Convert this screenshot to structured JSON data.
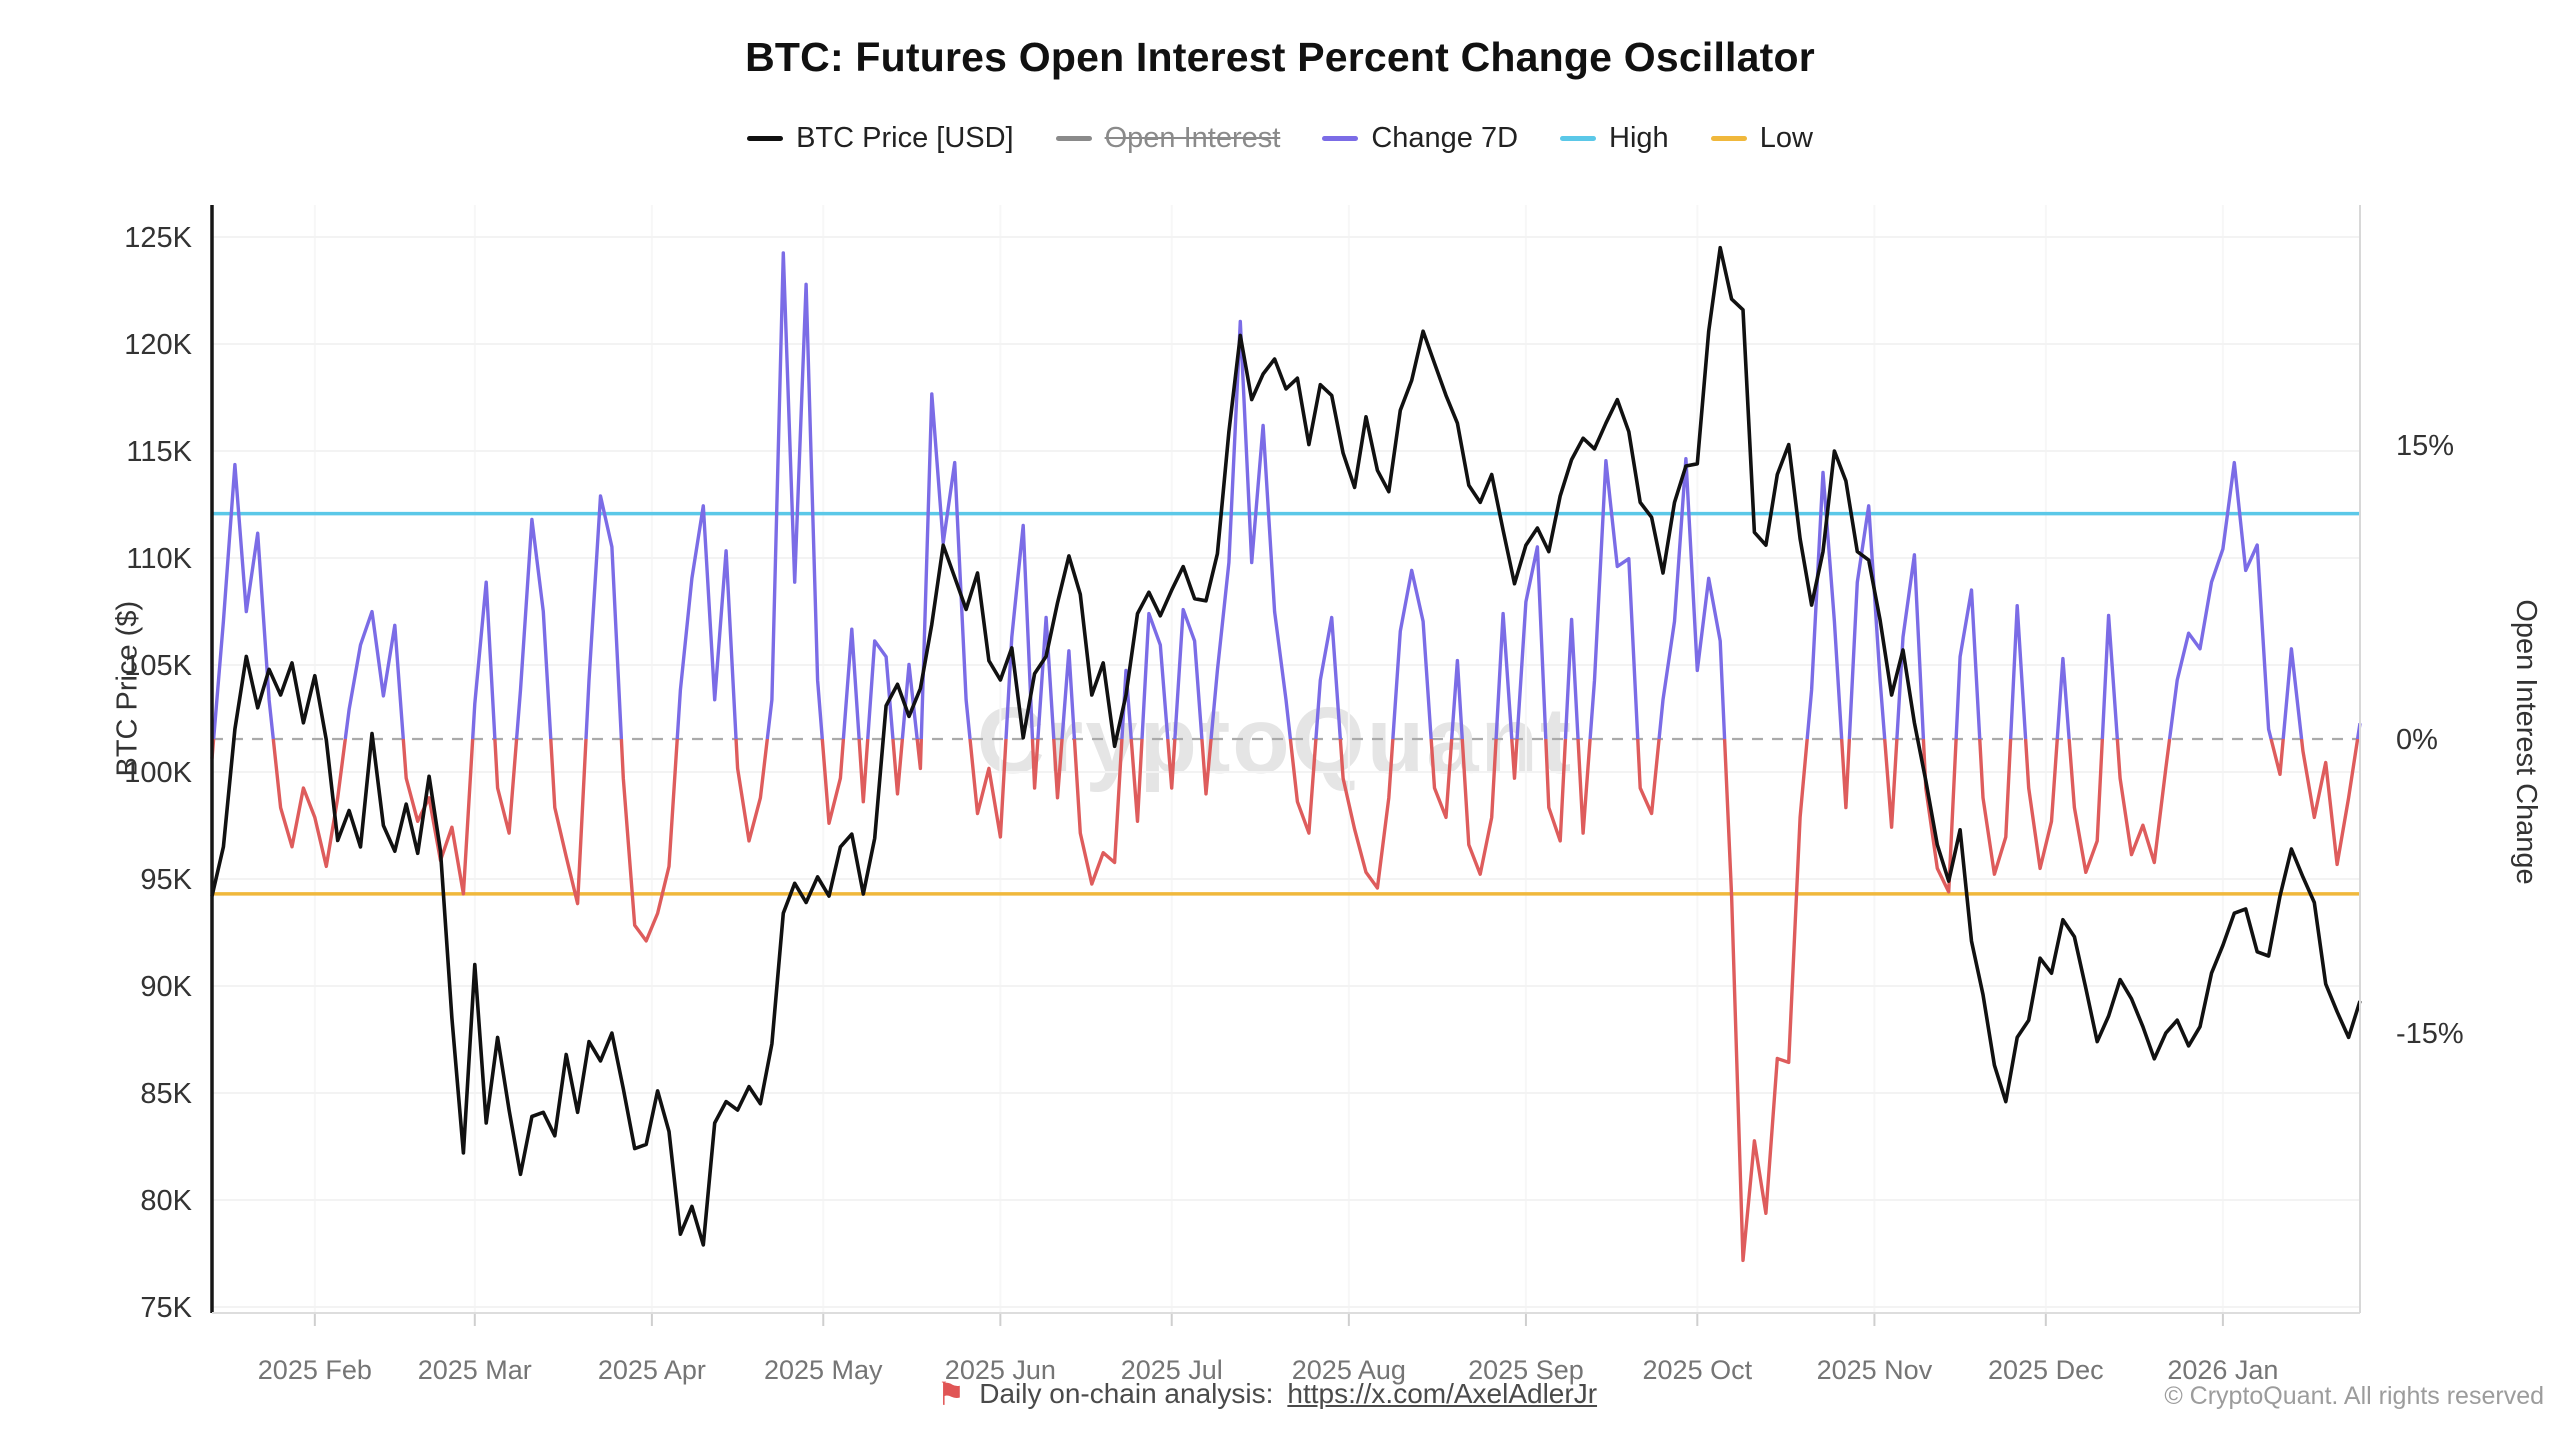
{
  "title": "BTC: Futures Open Interest Percent Change Oscillator",
  "watermark": "CryptoQuant",
  "legend": {
    "items": [
      {
        "label": "BTC Price [USD]",
        "color": "#111111",
        "strike": false
      },
      {
        "label": "Open Interest",
        "color": "#8a8a8a",
        "strike": true
      },
      {
        "label": "Change 7D",
        "color": "#7b6ce6",
        "strike": false
      },
      {
        "label": "High",
        "color": "#5bc8e8",
        "strike": false
      },
      {
        "label": "Low",
        "color": "#f0b83c",
        "strike": false
      }
    ]
  },
  "footer": {
    "flag_icon": "flag-icon",
    "note": "Daily on-chain analysis:",
    "link": "https://x.com/AxelAdlerJr",
    "copyright": "© CryptoQuant. All rights reserved"
  },
  "chart_data": {
    "type": "line",
    "title": "BTC: Futures Open Interest Percent Change Oscillator",
    "ylabel_left": "BTC Price ($)",
    "ylabel_right": "Open Interest Change",
    "grid": "faint horizontal at each price tick, faint vertical at each month",
    "legend_position": "top-center",
    "left_axis": {
      "ticks": [
        125,
        120,
        115,
        110,
        105,
        100,
        95,
        90,
        85,
        80,
        75
      ],
      "tick_labels": [
        "125K",
        "120K",
        "115K",
        "110K",
        "105K",
        "100K",
        "95K",
        "90K",
        "85K",
        "80K",
        "75K"
      ],
      "units": "USD thousands"
    },
    "right_axis": {
      "ticks": [
        15,
        0,
        -15
      ],
      "tick_labels": [
        "15%",
        "0%",
        "-15%"
      ],
      "units": "percent"
    },
    "x_axis": {
      "months": [
        "2025 Feb",
        "2025 Mar",
        "2025 Apr",
        "2025 May",
        "2025 Jun",
        "2025 Jul",
        "2025 Aug",
        "2025 Sep",
        "2025 Oct",
        "2025 Nov",
        "2025 Dec",
        "2026 Jan"
      ],
      "month_start_days": [
        18,
        46,
        77,
        107,
        138,
        168,
        199,
        230,
        260,
        291,
        321,
        352
      ],
      "domain_days": [
        0,
        376
      ],
      "day_step": 2
    },
    "reference_lines": {
      "high_pct": 11.5,
      "low_pct": -7.9,
      "zero_pct": 0
    },
    "colors": {
      "price": "#111111",
      "change_positive": "#7b6ce6",
      "change_negative": "#de5c5c",
      "high": "#5bc8e8",
      "low": "#f0b83c",
      "zero_dash": "#aaaaaa",
      "grid": "#f3f3f3",
      "axis": "#161616",
      "axis_light": "#d8d8d8",
      "tick_text": "#333333",
      "month_text": "#757575"
    },
    "series": [
      {
        "name": "BTC Price [USD]",
        "axis": "left",
        "units": "K USD",
        "values": [
          94.2,
          96.5,
          102.0,
          105.4,
          103.0,
          104.8,
          103.6,
          105.1,
          102.3,
          104.5,
          101.5,
          96.8,
          98.2,
          96.5,
          101.8,
          97.5,
          96.3,
          98.5,
          96.2,
          99.8,
          96.3,
          88.5,
          82.2,
          91.0,
          83.6,
          87.6,
          84.2,
          81.2,
          83.9,
          84.1,
          83.0,
          86.8,
          84.1,
          87.4,
          86.5,
          87.8,
          85.2,
          82.4,
          82.6,
          85.1,
          83.2,
          78.4,
          79.7,
          77.9,
          83.6,
          84.6,
          84.2,
          85.3,
          84.5,
          87.3,
          93.4,
          94.8,
          93.9,
          95.1,
          94.2,
          96.5,
          97.1,
          94.3,
          96.9,
          103.1,
          104.1,
          102.6,
          103.9,
          106.9,
          110.6,
          109.1,
          107.6,
          109.3,
          105.2,
          104.3,
          105.8,
          101.6,
          104.6,
          105.4,
          107.9,
          110.1,
          108.3,
          103.6,
          105.1,
          101.2,
          103.6,
          107.4,
          108.4,
          107.3,
          108.5,
          109.6,
          108.1,
          108.0,
          110.2,
          115.9,
          120.4,
          117.4,
          118.6,
          119.3,
          117.9,
          118.4,
          115.3,
          118.1,
          117.6,
          114.9,
          113.3,
          116.6,
          114.1,
          113.1,
          116.9,
          118.3,
          120.6,
          119.1,
          117.6,
          116.3,
          113.4,
          112.6,
          113.9,
          111.3,
          108.8,
          110.6,
          111.4,
          110.3,
          112.9,
          114.6,
          115.6,
          115.1,
          116.3,
          117.4,
          115.9,
          112.6,
          111.9,
          109.3,
          112.6,
          114.3,
          114.4,
          120.6,
          124.5,
          122.1,
          121.6,
          111.2,
          110.6,
          113.9,
          115.3,
          110.9,
          107.8,
          110.3,
          115.0,
          113.6,
          110.3,
          109.9,
          107.1,
          103.6,
          105.7,
          102.3,
          99.6,
          96.6,
          94.9,
          97.3,
          92.1,
          89.6,
          86.3,
          84.6,
          87.6,
          88.4,
          91.3,
          90.6,
          93.1,
          92.3,
          89.9,
          87.4,
          88.6,
          90.3,
          89.4,
          88.1,
          86.6,
          87.8,
          88.4,
          87.2,
          88.1,
          90.6,
          91.9,
          93.4,
          93.6,
          91.6,
          91.4,
          94.2,
          96.4,
          95.1,
          93.9,
          90.1,
          88.8,
          87.6,
          89.3
        ]
      },
      {
        "name": "Change 7D",
        "axis": "right",
        "units": "%",
        "values": [
          -1.0,
          6.0,
          14.0,
          6.5,
          10.5,
          2.0,
          -3.5,
          -5.5,
          -2.5,
          -4.0,
          -6.5,
          -3.0,
          1.5,
          4.8,
          6.5,
          2.2,
          5.8,
          -2.0,
          -4.2,
          -3.0,
          -6.2,
          -4.5,
          -7.9,
          1.8,
          8.0,
          -2.5,
          -4.8,
          2.5,
          11.2,
          6.5,
          -3.5,
          -6.0,
          -8.4,
          3.0,
          12.4,
          9.8,
          -2.0,
          -9.5,
          -10.3,
          -8.9,
          -6.5,
          2.5,
          8.2,
          11.9,
          2.0,
          9.6,
          -1.5,
          -5.2,
          -3.0,
          2.0,
          24.8,
          8.0,
          23.2,
          3.0,
          -4.3,
          -2.0,
          5.6,
          -3.2,
          5.0,
          4.2,
          -2.8,
          3.8,
          -1.5,
          17.6,
          10.0,
          14.1,
          2.0,
          -3.8,
          -1.5,
          -5.0,
          5.2,
          10.9,
          -2.5,
          6.2,
          -3.0,
          4.5,
          -4.8,
          -7.4,
          -5.8,
          -6.3,
          3.5,
          -4.2,
          6.4,
          4.8,
          -2.5,
          6.6,
          5.0,
          -2.8,
          3.5,
          9.0,
          21.3,
          9.0,
          16.0,
          6.5,
          2.0,
          -3.2,
          -4.8,
          3.0,
          6.2,
          -2.0,
          -4.6,
          -6.8,
          -7.6,
          -3.0,
          5.5,
          8.6,
          6.0,
          -2.5,
          -4.0,
          4.0,
          -5.4,
          -6.9,
          -4.0,
          6.4,
          -2.0,
          7.0,
          9.8,
          -3.5,
          -5.2,
          6.1,
          -4.8,
          3.0,
          14.2,
          8.8,
          9.2,
          -2.5,
          -3.8,
          2.0,
          6.0,
          14.3,
          3.5,
          8.2,
          5.0,
          -8.0,
          -26.6,
          -20.5,
          -24.2,
          -16.3,
          -16.5,
          -4.0,
          2.5,
          13.6,
          6.0,
          -3.5,
          8.0,
          11.9,
          3.0,
          -4.5,
          5.2,
          9.4,
          -2.5,
          -6.6,
          -7.8,
          4.2,
          7.6,
          -3.0,
          -6.9,
          -5.0,
          6.8,
          -2.5,
          -6.6,
          -4.2,
          4.1,
          -3.5,
          -6.8,
          -5.2,
          6.3,
          -2.0,
          -5.9,
          -4.4,
          -6.3,
          -1.5,
          3.0,
          5.4,
          4.6,
          8.0,
          9.7,
          14.1,
          8.6,
          9.9,
          0.5,
          -1.8,
          4.6,
          -0.6,
          -4.0,
          -1.2,
          -6.4,
          -3.0,
          0.8
        ]
      },
      {
        "name": "Open Interest",
        "axis": "right",
        "visible": false,
        "values": []
      }
    ]
  }
}
